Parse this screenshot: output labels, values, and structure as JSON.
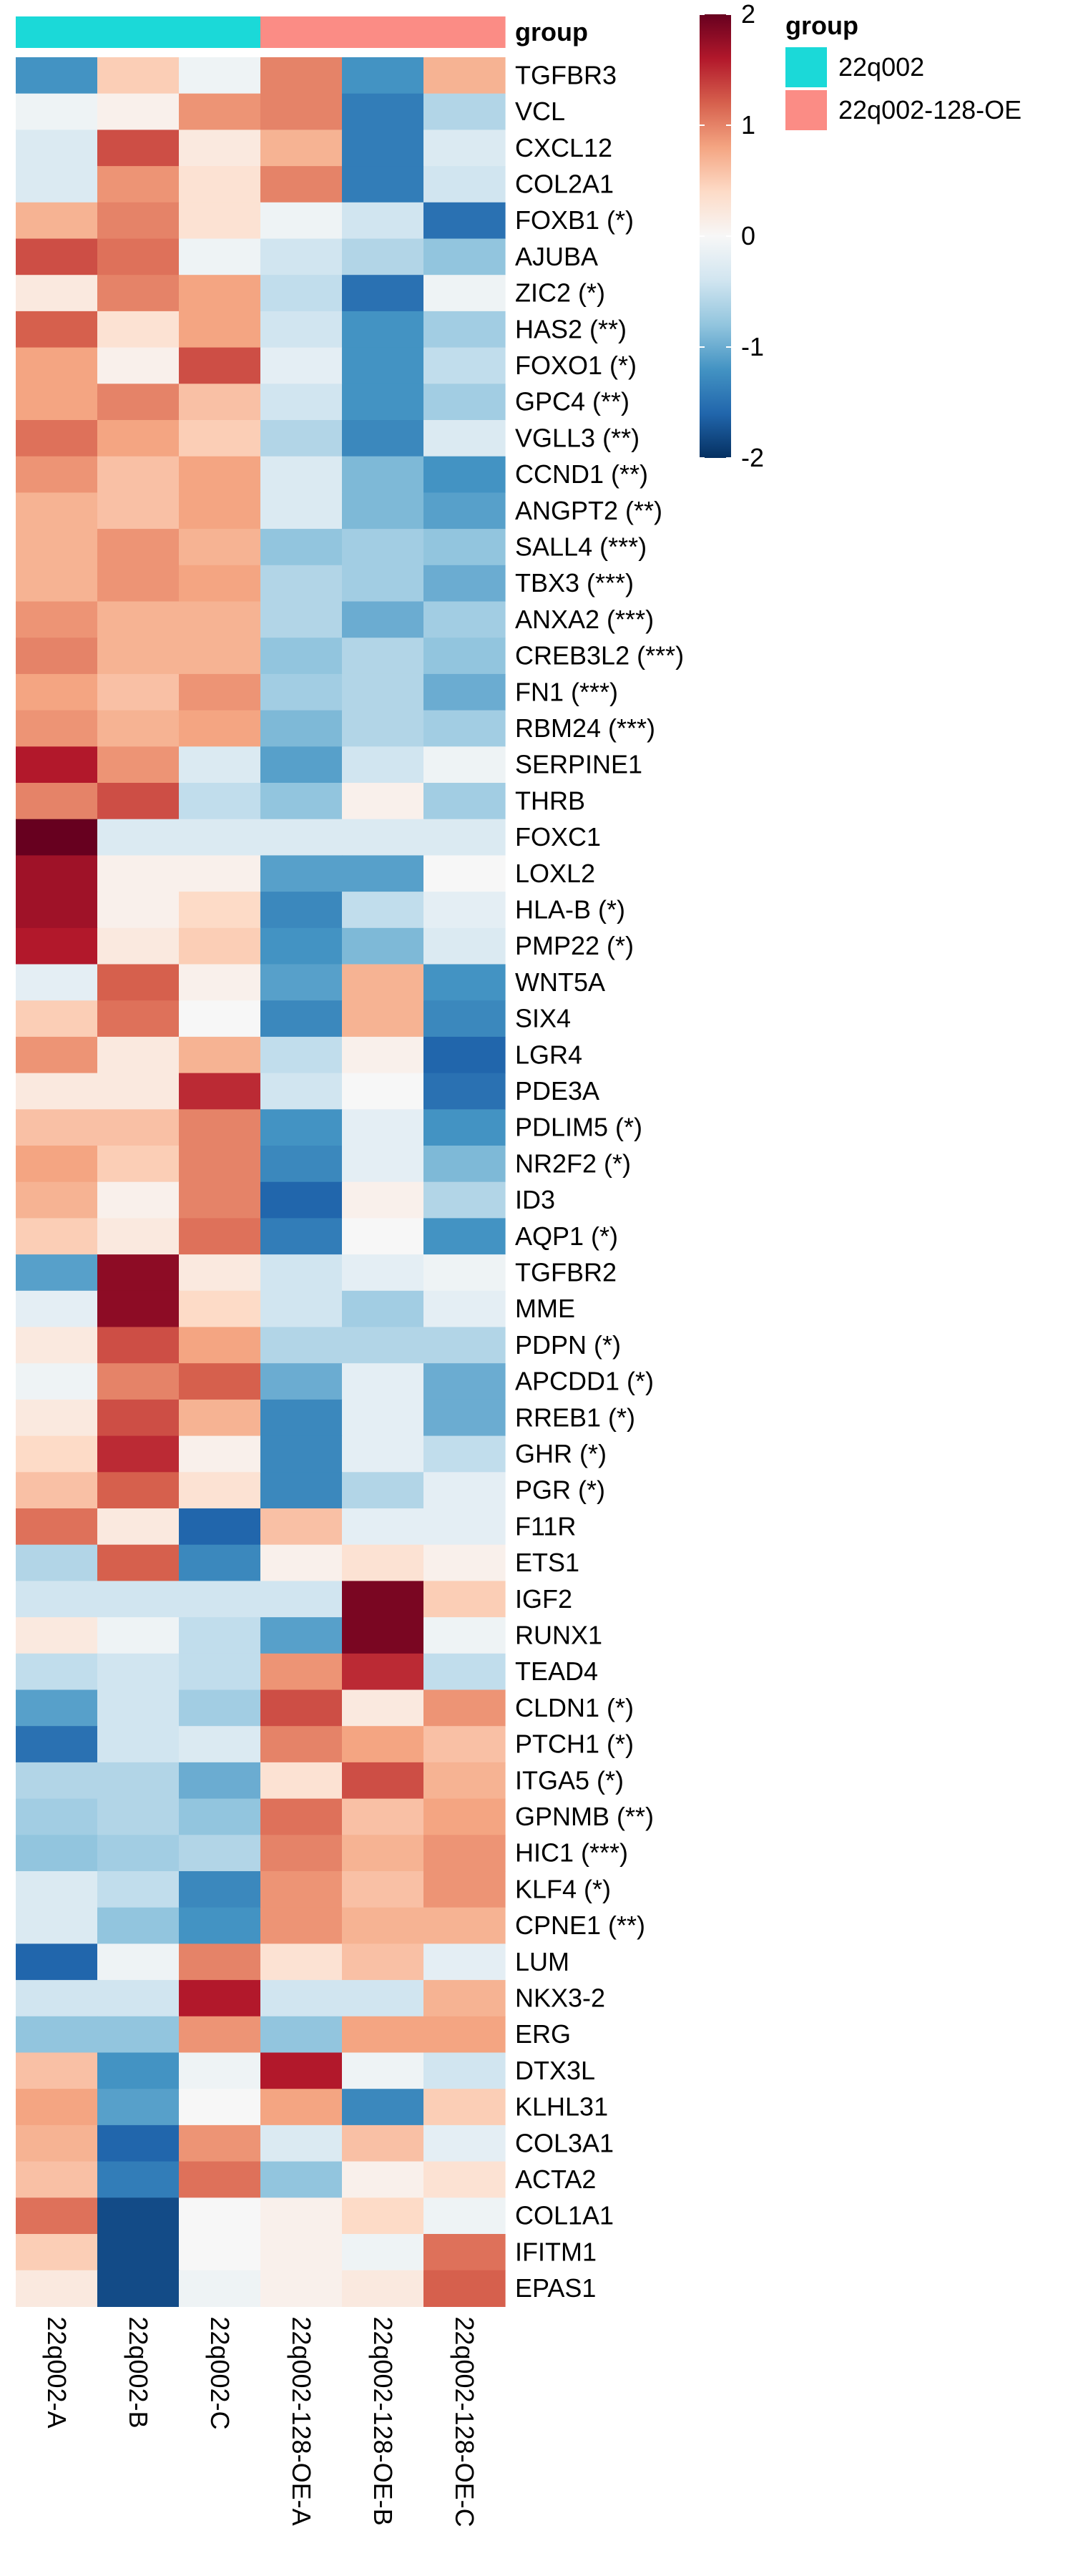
{
  "chart_data": {
    "type": "heatmap",
    "title": "",
    "annotation_title": "group",
    "columns": [
      "22q002-A",
      "22q002-B",
      "22q002-C",
      "22q002-128-OE-A",
      "22q002-128-OE-B",
      "22q002-128-OE-C"
    ],
    "column_groups": [
      "22q002",
      "22q002",
      "22q002",
      "22q002-128-OE",
      "22q002-128-OE",
      "22q002-128-OE"
    ],
    "groups": [
      {
        "name": "22q002",
        "color": "#1bd9d8"
      },
      {
        "name": "22q002-128-OE",
        "color": "#fb8c85"
      }
    ],
    "colorbar": {
      "min": -2,
      "max": 2,
      "ticks": [
        "2",
        "1",
        "0",
        "-1",
        "-2"
      ],
      "colors": [
        "#053061",
        "#2166ac",
        "#4393c3",
        "#92c5de",
        "#d1e5f0",
        "#f7f7f7",
        "#fddbc7",
        "#f4a582",
        "#d6604d",
        "#b2182b",
        "#67001f"
      ]
    },
    "rows": [
      {
        "gene": "TGFBR3",
        "values": [
          -1.2,
          0.5,
          -0.1,
          1.0,
          -1.2,
          0.7
        ]
      },
      {
        "gene": "VCL",
        "values": [
          -0.1,
          0.1,
          0.9,
          1.0,
          -1.4,
          -0.6
        ]
      },
      {
        "gene": "CXCL12",
        "values": [
          -0.3,
          1.3,
          0.2,
          0.7,
          -1.4,
          -0.3
        ]
      },
      {
        "gene": "COL2A1",
        "values": [
          -0.3,
          0.9,
          0.3,
          1.0,
          -1.4,
          -0.4
        ]
      },
      {
        "gene": "FOXB1 (*)",
        "values": [
          0.7,
          1.0,
          0.3,
          -0.1,
          -0.4,
          -1.5
        ]
      },
      {
        "gene": "AJUBA",
        "values": [
          1.3,
          1.1,
          -0.1,
          -0.4,
          -0.6,
          -0.8
        ]
      },
      {
        "gene": "ZIC2 (*)",
        "values": [
          0.2,
          1.0,
          0.8,
          -0.5,
          -1.5,
          -0.1
        ]
      },
      {
        "gene": "HAS2 (**)",
        "values": [
          1.2,
          0.3,
          0.8,
          -0.4,
          -1.2,
          -0.7
        ]
      },
      {
        "gene": "FOXO1 (*)",
        "values": [
          0.8,
          0.1,
          1.3,
          -0.2,
          -1.2,
          -0.5
        ]
      },
      {
        "gene": "GPC4 (**)",
        "values": [
          0.8,
          1.0,
          0.6,
          -0.4,
          -1.2,
          -0.7
        ]
      },
      {
        "gene": "VGLL3 (**)",
        "values": [
          1.1,
          0.8,
          0.5,
          -0.6,
          -1.3,
          -0.3
        ]
      },
      {
        "gene": "CCND1 (**)",
        "values": [
          0.9,
          0.6,
          0.8,
          -0.3,
          -0.9,
          -1.2
        ]
      },
      {
        "gene": "ANGPT2 (**)",
        "values": [
          0.7,
          0.6,
          0.8,
          -0.3,
          -0.9,
          -1.1
        ]
      },
      {
        "gene": "SALL4 (***)",
        "values": [
          0.7,
          0.9,
          0.7,
          -0.8,
          -0.7,
          -0.8
        ]
      },
      {
        "gene": "TBX3 (***)",
        "values": [
          0.7,
          0.9,
          0.8,
          -0.6,
          -0.7,
          -1.0
        ]
      },
      {
        "gene": "ANXA2 (***)",
        "values": [
          0.9,
          0.7,
          0.7,
          -0.6,
          -1.0,
          -0.7
        ]
      },
      {
        "gene": "CREB3L2 (***)",
        "values": [
          1.0,
          0.7,
          0.7,
          -0.8,
          -0.6,
          -0.8
        ]
      },
      {
        "gene": "FN1 (***)",
        "values": [
          0.8,
          0.6,
          0.9,
          -0.7,
          -0.6,
          -1.0
        ]
      },
      {
        "gene": "RBM24 (***)",
        "values": [
          0.9,
          0.7,
          0.8,
          -0.9,
          -0.6,
          -0.7
        ]
      },
      {
        "gene": "SERPINE1",
        "values": [
          1.6,
          0.9,
          -0.3,
          -1.1,
          -0.4,
          -0.1
        ]
      },
      {
        "gene": "THRB",
        "values": [
          1.0,
          1.3,
          -0.5,
          -0.8,
          0.1,
          -0.7
        ]
      },
      {
        "gene": "FOXC1",
        "values": [
          2.2,
          -0.3,
          -0.3,
          -0.3,
          -0.3,
          -0.3
        ]
      },
      {
        "gene": "LOXL2",
        "values": [
          1.7,
          0.1,
          0.1,
          -1.1,
          -1.1,
          0.0
        ]
      },
      {
        "gene": "HLA-B (*)",
        "values": [
          1.7,
          0.1,
          0.4,
          -1.3,
          -0.5,
          -0.2
        ]
      },
      {
        "gene": "PMP22 (*)",
        "values": [
          1.6,
          0.2,
          0.5,
          -1.2,
          -0.9,
          -0.3
        ]
      },
      {
        "gene": "WNT5A",
        "values": [
          -0.2,
          1.2,
          0.1,
          -1.1,
          0.7,
          -1.2
        ]
      },
      {
        "gene": "SIX4",
        "values": [
          0.5,
          1.1,
          0.0,
          -1.3,
          0.7,
          -1.3
        ]
      },
      {
        "gene": "LGR4",
        "values": [
          0.9,
          0.2,
          0.7,
          -0.5,
          0.1,
          -1.6
        ]
      },
      {
        "gene": "PDE3A",
        "values": [
          0.2,
          0.2,
          1.5,
          -0.4,
          0.0,
          -1.5
        ]
      },
      {
        "gene": "PDLIM5 (*)",
        "values": [
          0.6,
          0.6,
          1.0,
          -1.2,
          -0.2,
          -1.2
        ]
      },
      {
        "gene": "NR2F2 (*)",
        "values": [
          0.8,
          0.5,
          1.0,
          -1.3,
          -0.2,
          -0.9
        ]
      },
      {
        "gene": "ID3",
        "values": [
          0.7,
          0.1,
          1.0,
          -1.6,
          0.1,
          -0.6
        ]
      },
      {
        "gene": "AQP1 (*)",
        "values": [
          0.5,
          0.2,
          1.1,
          -1.4,
          0.0,
          -1.2
        ]
      },
      {
        "gene": "TGFBR2",
        "values": [
          -1.1,
          1.8,
          0.2,
          -0.4,
          -0.2,
          -0.1
        ]
      },
      {
        "gene": "MME",
        "values": [
          -0.2,
          1.8,
          0.4,
          -0.4,
          -0.7,
          -0.2
        ]
      },
      {
        "gene": "PDPN (*)",
        "values": [
          0.2,
          1.3,
          0.8,
          -0.6,
          -0.6,
          -0.6
        ]
      },
      {
        "gene": "APCDD1 (*)",
        "values": [
          -0.1,
          1.0,
          1.2,
          -1.0,
          -0.2,
          -1.0
        ]
      },
      {
        "gene": "RREB1 (*)",
        "values": [
          0.2,
          1.3,
          0.7,
          -1.3,
          -0.2,
          -1.0
        ]
      },
      {
        "gene": "GHR (*)",
        "values": [
          0.4,
          1.5,
          0.1,
          -1.3,
          -0.2,
          -0.5
        ]
      },
      {
        "gene": "PGR (*)",
        "values": [
          0.6,
          1.2,
          0.3,
          -1.3,
          -0.6,
          -0.2
        ]
      },
      {
        "gene": "F11R",
        "values": [
          1.1,
          0.2,
          -1.6,
          0.6,
          -0.2,
          -0.2
        ]
      },
      {
        "gene": "ETS1",
        "values": [
          -0.6,
          1.2,
          -1.3,
          0.1,
          0.3,
          0.1
        ]
      },
      {
        "gene": "IGF2",
        "values": [
          -0.4,
          -0.4,
          -0.4,
          -0.4,
          1.9,
          0.5
        ]
      },
      {
        "gene": "RUNX1",
        "values": [
          0.2,
          -0.1,
          -0.5,
          -1.1,
          1.9,
          -0.1
        ]
      },
      {
        "gene": "TEAD4",
        "values": [
          -0.5,
          -0.4,
          -0.5,
          0.9,
          1.5,
          -0.5
        ]
      },
      {
        "gene": "CLDN1 (*)",
        "values": [
          -1.1,
          -0.4,
          -0.7,
          1.3,
          0.2,
          0.9
        ]
      },
      {
        "gene": "PTCH1 (*)",
        "values": [
          -1.5,
          -0.4,
          -0.3,
          1.0,
          0.8,
          0.6
        ]
      },
      {
        "gene": "ITGA5 (*)",
        "values": [
          -0.6,
          -0.6,
          -1.0,
          0.3,
          1.3,
          0.7
        ]
      },
      {
        "gene": "GPNMB (**)",
        "values": [
          -0.7,
          -0.6,
          -0.8,
          1.1,
          0.6,
          0.8
        ]
      },
      {
        "gene": "HIC1 (***)",
        "values": [
          -0.8,
          -0.7,
          -0.6,
          1.0,
          0.7,
          0.9
        ]
      },
      {
        "gene": "KLF4 (*)",
        "values": [
          -0.3,
          -0.5,
          -1.3,
          0.9,
          0.6,
          0.9
        ]
      },
      {
        "gene": "CPNE1 (**)",
        "values": [
          -0.3,
          -0.8,
          -1.2,
          0.9,
          0.7,
          0.7
        ]
      },
      {
        "gene": "LUM",
        "values": [
          -1.6,
          -0.1,
          1.0,
          0.3,
          0.6,
          -0.2
        ]
      },
      {
        "gene": "NKX3-2",
        "values": [
          -0.4,
          -0.4,
          1.6,
          -0.4,
          -0.4,
          0.7
        ]
      },
      {
        "gene": "ERG",
        "values": [
          -0.8,
          -0.8,
          0.9,
          -0.8,
          0.8,
          0.8
        ]
      },
      {
        "gene": "DTX3L",
        "values": [
          0.6,
          -1.2,
          -0.1,
          1.6,
          -0.1,
          -0.4
        ]
      },
      {
        "gene": "KLHL31",
        "values": [
          0.8,
          -1.1,
          0.0,
          0.8,
          -1.3,
          0.5
        ]
      },
      {
        "gene": "COL3A1",
        "values": [
          0.7,
          -1.6,
          0.9,
          -0.3,
          0.6,
          -0.2
        ]
      },
      {
        "gene": "ACTA2",
        "values": [
          0.6,
          -1.4,
          1.1,
          -0.8,
          0.1,
          0.3
        ]
      },
      {
        "gene": "COL1A1",
        "values": [
          1.1,
          -1.8,
          0.0,
          0.1,
          0.4,
          -0.1
        ]
      },
      {
        "gene": "IFITM1",
        "values": [
          0.5,
          -1.8,
          0.0,
          0.1,
          -0.1,
          1.1
        ]
      },
      {
        "gene": "EPAS1",
        "values": [
          0.2,
          -1.8,
          -0.1,
          0.1,
          0.2,
          1.2
        ]
      }
    ]
  }
}
